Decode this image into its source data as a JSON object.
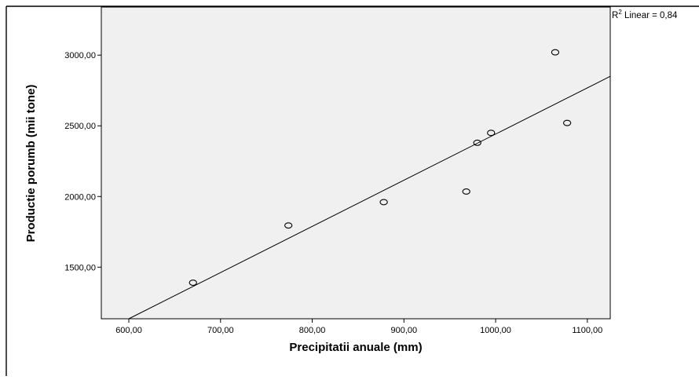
{
  "chart_data": {
    "type": "scatter",
    "title": "",
    "xlabel": "Precipitatii anuale (mm)",
    "ylabel": "Productie porumb (mii tone)",
    "xlim": [
      570,
      1125
    ],
    "ylim": [
      1135,
      3340
    ],
    "x_ticks": [
      600,
      700,
      800,
      900,
      1000,
      1100
    ],
    "y_ticks": [
      1500,
      2000,
      2500,
      3000
    ],
    "x_tick_labels": [
      "600,00",
      "700,00",
      "800,00",
      "900,00",
      "1000,00",
      "1100,00"
    ],
    "y_tick_labels": [
      "1500,00",
      "2000,00",
      "2500,00",
      "3000,00"
    ],
    "grid": false,
    "plot_background": "#f0f0f0",
    "series": [
      {
        "points": [
          {
            "x": 670,
            "y": 1390
          },
          {
            "x": 774,
            "y": 1795
          },
          {
            "x": 878,
            "y": 1960
          },
          {
            "x": 968,
            "y": 2035
          },
          {
            "x": 980,
            "y": 2380
          },
          {
            "x": 995,
            "y": 2450
          },
          {
            "x": 1065,
            "y": 3020
          },
          {
            "x": 1078,
            "y": 2520
          }
        ]
      }
    ],
    "fit_line": {
      "type": "linear",
      "x": [
        600,
        1125
      ],
      "y": [
        1135,
        2850
      ]
    },
    "annotation": {
      "r2_prefix": "R",
      "r2_sup": "2",
      "r2_text": " Linear = 0,84"
    }
  }
}
